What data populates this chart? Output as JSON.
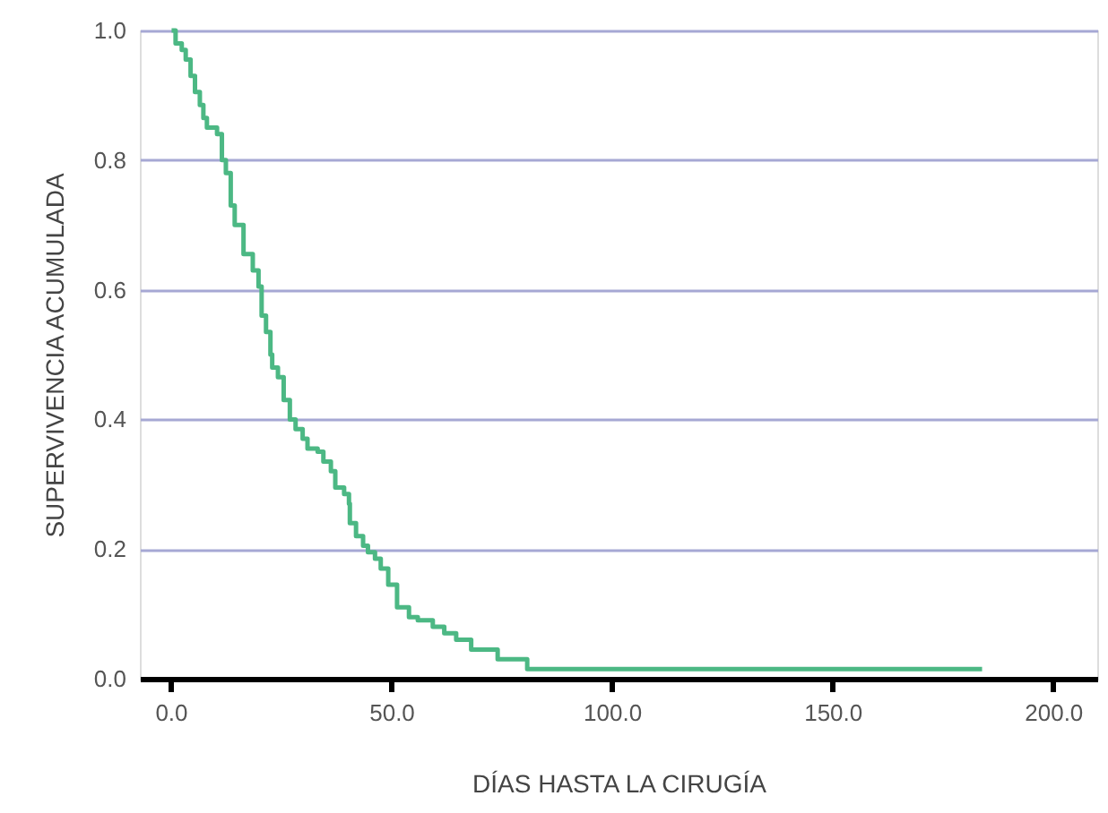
{
  "chart_data": {
    "type": "step",
    "xlabel": "DÍAS HASTA LA CIRUGÍA",
    "ylabel": "SUPERVIVENCIA ACUMULADA",
    "x": [
      0.2,
      1.1,
      2.5,
      3.4,
      4.5,
      5.5,
      6.6,
      7.4,
      8.2,
      10.5,
      11.6,
      12.5,
      13.6,
      14.5,
      16.5,
      18.6,
      19.9,
      20.6,
      21.6,
      22.6,
      23.0,
      24.3,
      25.6,
      27.0,
      28.3,
      29.9,
      31.0,
      33.3,
      34.6,
      36.3,
      37.3,
      39.3,
      40.4,
      40.6,
      42.0,
      43.6,
      44.7,
      46.3,
      47.6,
      49.3,
      51.3,
      54.0,
      56.0,
      59.4,
      62.0,
      64.7,
      68.1,
      74.1,
      80.8,
      183.9
    ],
    "series": [
      {
        "color": "#4cb884",
        "values": [
          1.0,
          0.98,
          0.97,
          0.955,
          0.93,
          0.905,
          0.885,
          0.865,
          0.85,
          0.84,
          0.8,
          0.78,
          0.73,
          0.7,
          0.655,
          0.63,
          0.605,
          0.56,
          0.535,
          0.5,
          0.48,
          0.465,
          0.43,
          0.4,
          0.385,
          0.37,
          0.355,
          0.35,
          0.335,
          0.32,
          0.295,
          0.285,
          0.27,
          0.24,
          0.22,
          0.205,
          0.195,
          0.185,
          0.17,
          0.145,
          0.11,
          0.095,
          0.09,
          0.08,
          0.07,
          0.06,
          0.045,
          0.03,
          0.015,
          0.015
        ]
      }
    ],
    "xlim": [
      -7,
      210
    ],
    "ylim": [
      0,
      1.0
    ],
    "xticks": [
      {
        "value": 0,
        "label": "0.0"
      },
      {
        "value": 50,
        "label": "50.0"
      },
      {
        "value": 100,
        "label": "100.0"
      },
      {
        "value": 150,
        "label": "150.0"
      },
      {
        "value": 200,
        "label": "200.0"
      }
    ],
    "yticks": [
      {
        "value": 0,
        "label": "0.0"
      },
      {
        "value": 0.2,
        "label": "0.2"
      },
      {
        "value": 0.4,
        "label": "0.4"
      },
      {
        "value": 0.6,
        "label": "0.6"
      },
      {
        "value": 0.8,
        "label": "0.8"
      },
      {
        "value": 1.0,
        "label": "1.0"
      }
    ],
    "grid": "y",
    "marker": "none",
    "line_style": "solid"
  }
}
